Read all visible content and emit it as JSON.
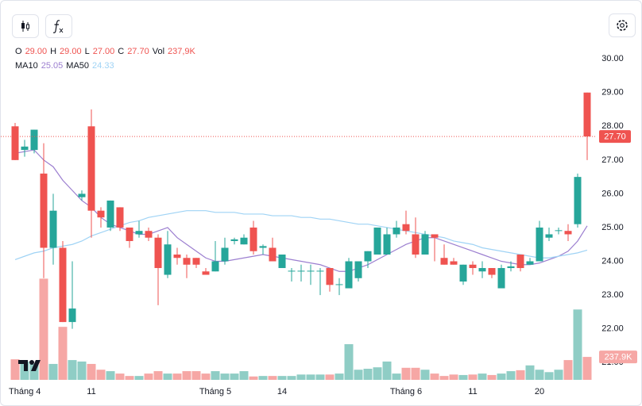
{
  "chart_data": {
    "type": "candlestick",
    "legend": {
      "ohlc": [
        {
          "label": "O",
          "value": "29.00"
        },
        {
          "label": "H",
          "value": "29.00"
        },
        {
          "label": "L",
          "value": "27.00"
        },
        {
          "label": "C",
          "value": "27.70"
        },
        {
          "label": "Vol",
          "value": "237,9K"
        }
      ],
      "ma": [
        {
          "label": "MA10",
          "value": "25.05"
        },
        {
          "label": "MA50",
          "value": "24.33"
        }
      ]
    },
    "categories": [
      "Tháng 4",
      null,
      null,
      null,
      null,
      null,
      null,
      null,
      "11",
      null,
      null,
      null,
      null,
      null,
      null,
      null,
      null,
      null,
      null,
      null,
      null,
      "Tháng 5",
      null,
      null,
      null,
      null,
      null,
      null,
      "14",
      null,
      null,
      null,
      null,
      null,
      null,
      null,
      null,
      null,
      null,
      null,
      null,
      "Tháng 6",
      null,
      null,
      null,
      null,
      null,
      null,
      "11",
      null,
      null,
      null,
      null,
      null,
      null,
      "20",
      null,
      null,
      null,
      null,
      null
    ],
    "open": [
      28.0,
      27.3,
      27.3,
      26.6,
      24.4,
      24.4,
      22.2,
      25.9,
      28.0,
      25.5,
      25.0,
      25.6,
      25.0,
      24.8,
      24.9,
      24.7,
      23.6,
      24.2,
      24.1,
      24.1,
      23.7,
      23.7,
      24.0,
      24.6,
      24.5,
      25.0,
      24.4,
      24.4,
      23.8,
      23.7,
      23.7,
      23.7,
      23.7,
      23.8,
      23.3,
      23.2,
      23.5,
      24.0,
      24.2,
      24.2,
      24.8,
      25.1,
      24.8,
      24.2,
      24.8,
      24.1,
      24.0,
      23.4,
      23.9,
      23.7,
      23.8,
      23.2,
      23.8,
      24.2,
      23.9,
      24.0,
      24.7,
      24.9,
      24.9,
      25.1,
      29.0
    ],
    "high": [
      28.1,
      27.6,
      27.9,
      27.5,
      26.0,
      24.6,
      24.0,
      26.1,
      28.5,
      25.6,
      25.8,
      25.6,
      25.0,
      25.2,
      25.0,
      24.8,
      24.9,
      24.4,
      24.2,
      24.1,
      23.8,
      24.6,
      24.7,
      24.7,
      24.8,
      25.2,
      24.5,
      24.7,
      24.2,
      23.8,
      23.9,
      23.9,
      23.8,
      23.8,
      23.5,
      24.1,
      24.0,
      24.3,
      25.0,
      25.0,
      25.2,
      25.5,
      25.3,
      24.9,
      24.8,
      24.5,
      24.1,
      23.9,
      24.0,
      24.0,
      23.8,
      23.9,
      24.0,
      24.2,
      24.1,
      25.2,
      25.0,
      25.0,
      25.1,
      26.6,
      29.0
    ],
    "low": [
      27.0,
      27.1,
      27.2,
      23.5,
      23.9,
      22.2,
      22.0,
      25.8,
      24.7,
      25.0,
      24.9,
      24.9,
      24.4,
      24.7,
      24.6,
      22.7,
      23.5,
      23.9,
      23.5,
      23.8,
      23.6,
      23.7,
      23.9,
      24.5,
      24.5,
      24.2,
      24.2,
      24.0,
      23.8,
      23.4,
      23.4,
      23.3,
      23.0,
      23.1,
      23.0,
      23.2,
      23.4,
      23.8,
      24.2,
      24.2,
      24.7,
      24.8,
      24.1,
      24.2,
      24.0,
      23.9,
      23.9,
      23.3,
      23.6,
      23.5,
      23.5,
      23.2,
      23.7,
      23.7,
      23.9,
      24.0,
      24.6,
      24.8,
      24.6,
      25.0,
      27.0
    ],
    "close": [
      27.0,
      27.4,
      27.9,
      24.4,
      25.5,
      22.2,
      22.6,
      26.0,
      25.5,
      25.3,
      25.8,
      25.0,
      24.6,
      24.9,
      24.7,
      23.8,
      24.5,
      24.1,
      23.9,
      23.9,
      23.6,
      24.0,
      24.4,
      24.65,
      24.7,
      24.3,
      24.45,
      24.0,
      24.2,
      23.72,
      23.72,
      23.72,
      23.72,
      23.3,
      23.32,
      24.0,
      24.0,
      24.3,
      25.0,
      24.8,
      25.0,
      24.9,
      24.2,
      24.8,
      24.7,
      23.9,
      23.9,
      23.9,
      23.8,
      23.8,
      23.6,
      23.8,
      23.85,
      23.8,
      24.0,
      25.0,
      24.8,
      24.92,
      24.8,
      26.5,
      27.7
    ],
    "volume": [
      213,
      190,
      165,
      1050,
      165,
      550,
      205,
      190,
      165,
      105,
      90,
      65,
      40,
      40,
      65,
      90,
      65,
      65,
      90,
      90,
      65,
      90,
      65,
      65,
      90,
      35,
      40,
      40,
      40,
      40,
      55,
      55,
      55,
      55,
      65,
      370,
      105,
      115,
      130,
      190,
      65,
      125,
      125,
      105,
      65,
      40,
      55,
      50,
      55,
      65,
      50,
      65,
      90,
      100,
      150,
      105,
      80,
      105,
      205,
      730,
      237.9
    ],
    "series": [
      {
        "name": "MA10",
        "color": "#9c7fd0",
        "values": [
          27.2,
          27.25,
          27.3,
          27.0,
          26.8,
          26.4,
          26.1,
          25.8,
          25.6,
          25.3,
          25.1,
          25.0,
          24.9,
          24.8,
          24.8,
          24.9,
          25.0,
          24.7,
          24.5,
          24.3,
          24.1,
          24.0,
          24.0,
          24.05,
          24.1,
          24.15,
          24.2,
          24.15,
          24.1,
          24.05,
          24.0,
          23.95,
          23.9,
          23.8,
          23.7,
          23.7,
          23.8,
          23.9,
          24.05,
          24.2,
          24.35,
          24.5,
          24.6,
          24.7,
          24.7,
          24.6,
          24.5,
          24.4,
          24.3,
          24.2,
          24.1,
          24.0,
          23.95,
          23.9,
          23.9,
          23.95,
          24.05,
          24.15,
          24.3,
          24.6,
          25.05
        ]
      },
      {
        "name": "MA50",
        "color": "#9fd3f5",
        "values": [
          24.05,
          24.15,
          24.25,
          24.3,
          24.4,
          24.45,
          24.5,
          24.6,
          24.75,
          24.85,
          24.95,
          25.05,
          25.15,
          25.2,
          25.3,
          25.35,
          25.4,
          25.45,
          25.5,
          25.5,
          25.5,
          25.45,
          25.45,
          25.45,
          25.4,
          25.4,
          25.4,
          25.35,
          25.35,
          25.35,
          25.3,
          25.3,
          25.25,
          25.25,
          25.2,
          25.15,
          25.1,
          25.1,
          25.05,
          25.0,
          24.95,
          24.9,
          24.85,
          24.8,
          24.75,
          24.7,
          24.6,
          24.55,
          24.5,
          24.4,
          24.35,
          24.3,
          24.25,
          24.2,
          24.15,
          24.1,
          24.1,
          24.15,
          24.2,
          24.25,
          24.33
        ]
      }
    ],
    "up_color": "#26a69a",
    "down_color": "#ef5350",
    "volume_up_color": "#8fcdc5",
    "volume_down_color": "#f6a7a5",
    "ylim": [
      20.44,
      30.31
    ],
    "yticks": [
      {
        "value": 21,
        "label": "21.00"
      },
      {
        "value": 22,
        "label": "22.00"
      },
      {
        "value": 23,
        "label": "23.00"
      },
      {
        "value": 24,
        "label": "24.00"
      },
      {
        "value": 25,
        "label": "25.00"
      },
      {
        "value": 26,
        "label": "26.00"
      },
      {
        "value": 27,
        "label": "27.00"
      },
      {
        "value": 28,
        "label": "28.00"
      },
      {
        "value": 29,
        "label": "29.00"
      },
      {
        "value": 30,
        "label": "30.00"
      }
    ],
    "volume_ylim": [
      0,
      3440
    ],
    "price_marker": {
      "value": 27.7,
      "label": "27.70"
    },
    "volume_marker": {
      "value": 237.9,
      "label": "237.9K"
    }
  }
}
